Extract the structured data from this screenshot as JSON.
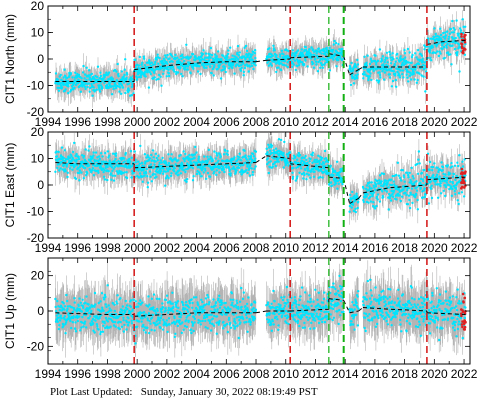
{
  "footer": {
    "label": "Plot Last Updated:",
    "value": "Sunday, January 30, 2022 08:19:49 PST"
  },
  "colors": {
    "data": "#00e5ff",
    "error_bars": "#b4b4b4",
    "model": "#000000",
    "offset_red": "#d62020",
    "offset_green": "#12b012",
    "recent": "#e02020"
  },
  "chart_data": [
    {
      "type": "scatter",
      "ylabel": "CIT1 North (mm)",
      "xlim": [
        1994,
        2022.4
      ],
      "ylim": [
        -20,
        20
      ],
      "yticks": [
        -20,
        -10,
        0,
        10,
        20
      ],
      "xticks": [
        1994,
        1996,
        1998,
        2000,
        2002,
        2004,
        2006,
        2008,
        2010,
        2012,
        2014,
        2016,
        2018,
        2020,
        2022
      ],
      "grid": false,
      "gaps": [
        [
          2008.0,
          2008.7
        ],
        [
          2013.9,
          2014.3
        ],
        [
          2014.9,
          2015.2
        ]
      ],
      "offsets_red": [
        1999.8,
        2010.3,
        2019.5
      ],
      "offsets_green": [
        2012.9,
        2013.9
      ],
      "series": [
        {
          "segments": [
            {
              "x": [
                1994.5,
                1996,
                1998,
                1999.8
              ],
              "y": [
                -8.5,
                -8.5,
                -8.5,
                -8.5
              ]
            },
            {
              "x": [
                1999.8,
                2002,
                2004,
                2006,
                2008
              ],
              "y": [
                -4,
                -2.5,
                -1.5,
                -1,
                -1
              ]
            },
            {
              "x": [
                2008.7,
                2010.3
              ],
              "y": [
                -0.5,
                0
              ]
            },
            {
              "x": [
                2010.3,
                2012.9
              ],
              "y": [
                0.5,
                1
              ]
            },
            {
              "x": [
                2012.9,
                2013.9
              ],
              "y": [
                2,
                1
              ]
            },
            {
              "x": [
                2014.3,
                2014.9
              ],
              "y": [
                -6,
                -4
              ]
            },
            {
              "x": [
                2015.2,
                2017,
                2019.5
              ],
              "y": [
                -3,
                -3,
                -3
              ]
            },
            {
              "x": [
                2019.5,
                2020.5,
                2022.1
              ],
              "y": [
                5.5,
                6.5,
                7
              ]
            }
          ],
          "scatter": 2.2,
          "error": 3.5
        }
      ]
    },
    {
      "type": "scatter",
      "ylabel": "CIT1 East (mm)",
      "xlim": [
        1994,
        2022.4
      ],
      "ylim": [
        -20,
        20
      ],
      "yticks": [
        -20,
        -10,
        0,
        10,
        20
      ],
      "xticks": [
        1994,
        1996,
        1998,
        2000,
        2002,
        2004,
        2006,
        2008,
        2010,
        2012,
        2014,
        2016,
        2018,
        2020,
        2022
      ],
      "grid": false,
      "gaps": [
        [
          2008.0,
          2008.7
        ],
        [
          2013.9,
          2014.3
        ],
        [
          2014.9,
          2015.2
        ]
      ],
      "offsets_red": [
        1999.8,
        2010.3,
        2019.5
      ],
      "offsets_green": [
        2012.9,
        2013.9
      ],
      "series": [
        {
          "segments": [
            {
              "x": [
                1994.5,
                1996,
                1998,
                1999.8
              ],
              "y": [
                8.5,
                8,
                8,
                8
              ]
            },
            {
              "x": [
                1999.8,
                2002,
                2004,
                2006,
                2008
              ],
              "y": [
                6.5,
                7,
                7.5,
                8,
                8.5
              ]
            },
            {
              "x": [
                2008.7,
                2010.3
              ],
              "y": [
                11,
                10
              ]
            },
            {
              "x": [
                2010.3,
                2012.9
              ],
              "y": [
                8,
                6.5
              ]
            },
            {
              "x": [
                2012.9,
                2013.9
              ],
              "y": [
                3,
                2.5
              ]
            },
            {
              "x": [
                2014.3,
                2014.9
              ],
              "y": [
                -7,
                -5
              ]
            },
            {
              "x": [
                2015.2,
                2017,
                2019.5
              ],
              "y": [
                -3,
                -1,
                0
              ]
            },
            {
              "x": [
                2019.5,
                2022.1
              ],
              "y": [
                2,
                3
              ]
            }
          ],
          "scatter": 2.4,
          "error": 4
        }
      ]
    },
    {
      "type": "scatter",
      "ylabel": "CIT1 Up (mm)",
      "xlim": [
        1994,
        2022.4
      ],
      "ylim": [
        -30,
        30
      ],
      "yticks": [
        -20,
        0,
        20
      ],
      "xticks": [
        1994,
        1996,
        1998,
        2000,
        2002,
        2004,
        2006,
        2008,
        2010,
        2012,
        2014,
        2016,
        2018,
        2020,
        2022
      ],
      "grid": false,
      "gaps": [
        [
          2008.0,
          2008.7
        ],
        [
          2013.9,
          2014.3
        ],
        [
          2014.9,
          2015.2
        ]
      ],
      "offsets_red": [
        1999.8,
        2010.3,
        2019.5
      ],
      "offsets_green": [
        2012.9,
        2013.9
      ],
      "series": [
        {
          "segments": [
            {
              "x": [
                1994.5,
                1996,
                1998,
                1999.8
              ],
              "y": [
                -1,
                -1.5,
                -2,
                -2
              ]
            },
            {
              "x": [
                1999.8,
                2002,
                2004,
                2006,
                2008
              ],
              "y": [
                -3,
                -2,
                -1,
                -1,
                -1
              ]
            },
            {
              "x": [
                2008.7,
                2010.3
              ],
              "y": [
                0,
                0
              ]
            },
            {
              "x": [
                2010.3,
                2012.9
              ],
              "y": [
                0,
                1
              ]
            },
            {
              "x": [
                2012.9,
                2013.9
              ],
              "y": [
                7,
                6
              ]
            },
            {
              "x": [
                2014.3,
                2014.9
              ],
              "y": [
                -1,
                0
              ]
            },
            {
              "x": [
                2015.2,
                2017,
                2019.5
              ],
              "y": [
                2,
                1,
                0
              ]
            },
            {
              "x": [
                2019.5,
                2022.1
              ],
              "y": [
                -1,
                -2
              ]
            }
          ],
          "scatter": 5,
          "error": 10
        }
      ]
    }
  ]
}
